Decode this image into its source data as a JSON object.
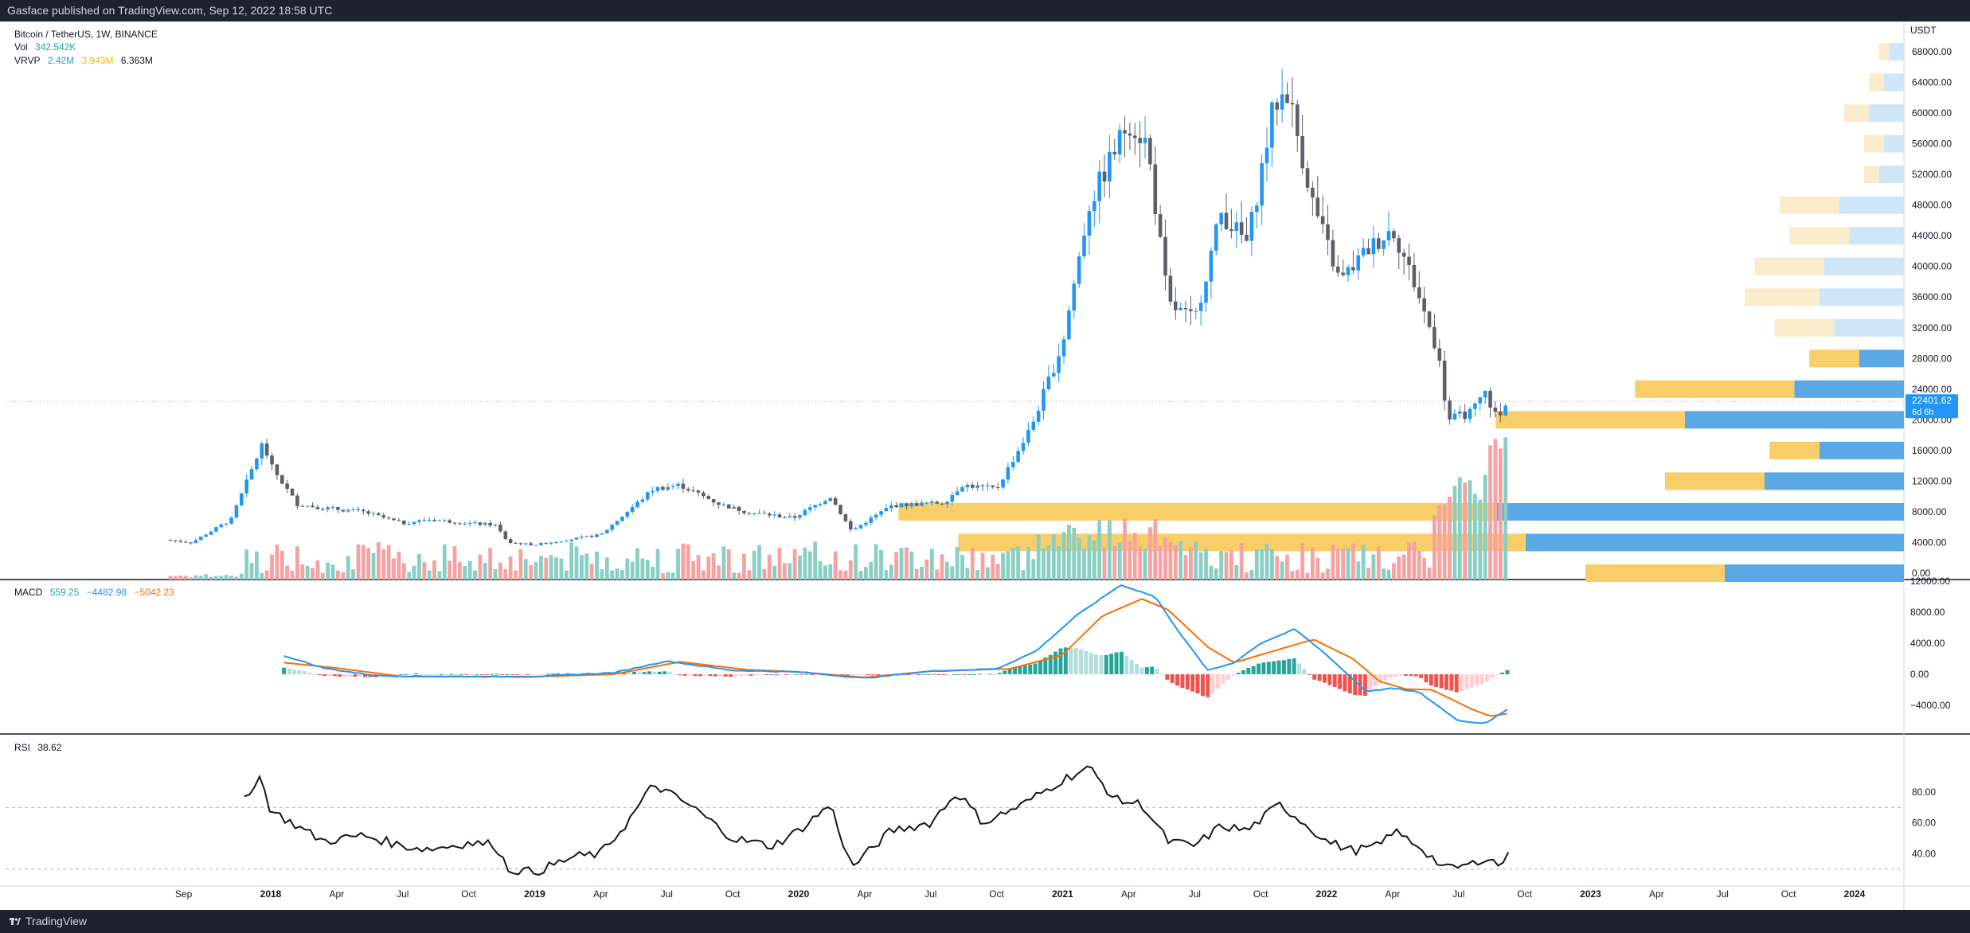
{
  "header": {
    "publisher": "Gasface published on TradingView.com, Sep 12, 2022 18:58 UTC"
  },
  "footer": {
    "brand": "TradingView",
    "logo_icon": "tradingview-logo-icon"
  },
  "symbol": {
    "title": "Bitcoin / TetherUS, 1W, BINANCE",
    "vol_label": "Vol",
    "vol_value": "342.542K",
    "vrvp_label": "VRVP",
    "vrvp_up": "2.42M",
    "vrvp_down": "3.943M",
    "vrvp_total": "6.363M",
    "currency": "USDT",
    "last_price": "22401.62",
    "countdown": "6d 6h"
  },
  "macd": {
    "label": "MACD",
    "hist": "559.25",
    "macd": "−4482.98",
    "signal": "−5042.23"
  },
  "rsi": {
    "label": "RSI",
    "value": "38.62"
  },
  "colors": {
    "up": "#2196f3",
    "down": "#5d606b",
    "vol_up": "#89cfc4",
    "vol_down": "#f5a3a2",
    "macd_line": "#2196f3",
    "signal_line": "#ff6d00",
    "hist_up": "#26a69a",
    "hist_up_weak": "#b2dfdb",
    "hist_down": "#ef5350",
    "hist_down_weak": "#ffcdd2",
    "rsi_line": "#131722",
    "vp_up": "#5aa9e6",
    "vp_down": "#f9ce69",
    "vp_up_weak": "#cfe6f9",
    "vp_down_weak": "#fbeccb"
  },
  "chart_data": [
    {
      "type": "candlestick",
      "title": "Bitcoin / TetherUS, 1W, BINANCE",
      "ylabel": "USDT",
      "ylim": [
        0,
        70000
      ],
      "y_ticks": [
        "68000.00",
        "64000.00",
        "60000.00",
        "56000.00",
        "52000.00",
        "48000.00",
        "44000.00",
        "40000.00",
        "36000.00",
        "32000.00",
        "28000.00",
        "24000.00",
        "20000.00",
        "16000.00",
        "12000.00",
        "8000.00",
        "4000.00",
        "0.00"
      ],
      "x_ticks": [
        "Sep",
        "2018",
        "Apr",
        "Jul",
        "Oct",
        "2019",
        "Apr",
        "Jul",
        "Oct",
        "2020",
        "Apr",
        "Jul",
        "Oct",
        "2021",
        "Apr",
        "Jul",
        "Oct",
        "2022",
        "Apr",
        "Jul",
        "Oct",
        "2023",
        "Apr",
        "Jul",
        "Oct",
        "2024"
      ],
      "x_tick_years": [
        2017.67,
        2018.0,
        2018.25,
        2018.5,
        2018.75,
        2019.0,
        2019.25,
        2019.5,
        2019.75,
        2020.0,
        2020.25,
        2020.5,
        2020.75,
        2021.0,
        2021.25,
        2021.5,
        2021.75,
        2022.0,
        2022.25,
        2022.5,
        2022.75,
        2023.0,
        2023.25,
        2023.5,
        2023.75,
        2024.0
      ],
      "x_bold": [
        false,
        true,
        false,
        false,
        false,
        true,
        false,
        false,
        false,
        true,
        false,
        false,
        false,
        true,
        false,
        false,
        false,
        true,
        false,
        false,
        false,
        true,
        false,
        false,
        false,
        true
      ],
      "approx_close_keyframes": [
        [
          2017.62,
          4300
        ],
        [
          2017.7,
          4000
        ],
        [
          2017.85,
          7000
        ],
        [
          2017.97,
          17000
        ],
        [
          2018.0,
          14000
        ],
        [
          2018.1,
          9000
        ],
        [
          2018.2,
          8500
        ],
        [
          2018.35,
          8000
        ],
        [
          2018.5,
          6500
        ],
        [
          2018.6,
          7000
        ],
        [
          2018.75,
          6500
        ],
        [
          2018.85,
          6300
        ],
        [
          2018.9,
          4000
        ],
        [
          2019.0,
          3700
        ],
        [
          2019.25,
          5000
        ],
        [
          2019.45,
          11000
        ],
        [
          2019.55,
          11500
        ],
        [
          2019.7,
          9000
        ],
        [
          2019.8,
          8000
        ],
        [
          2019.98,
          7200
        ],
        [
          2020.12,
          10000
        ],
        [
          2020.2,
          5500
        ],
        [
          2020.35,
          8800
        ],
        [
          2020.55,
          9200
        ],
        [
          2020.62,
          11500
        ],
        [
          2020.75,
          11000
        ],
        [
          2020.88,
          19000
        ],
        [
          2021.0,
          30000
        ],
        [
          2021.1,
          48000
        ],
        [
          2021.25,
          59000
        ],
        [
          2021.32,
          56000
        ],
        [
          2021.4,
          35000
        ],
        [
          2021.5,
          33000
        ],
        [
          2021.6,
          47000
        ],
        [
          2021.7,
          43000
        ],
        [
          2021.8,
          61000
        ],
        [
          2021.85,
          63000
        ],
        [
          2021.95,
          48000
        ],
        [
          2022.05,
          38000
        ],
        [
          2022.15,
          42000
        ],
        [
          2022.25,
          45000
        ],
        [
          2022.33,
          38000
        ],
        [
          2022.42,
          29000
        ],
        [
          2022.46,
          20000
        ],
        [
          2022.55,
          21000
        ],
        [
          2022.6,
          23500
        ],
        [
          2022.65,
          20000
        ],
        [
          2022.69,
          22400
        ]
      ]
    },
    {
      "type": "volume_profile",
      "rows": [
        {
          "price": 66000,
          "up": 0.015,
          "down": 0.01,
          "weak": true
        },
        {
          "price": 62000,
          "up": 0.02,
          "down": 0.015,
          "weak": true
        },
        {
          "price": 58000,
          "up": 0.035,
          "down": 0.025,
          "weak": true
        },
        {
          "price": 54000,
          "up": 0.02,
          "down": 0.02,
          "weak": true
        },
        {
          "price": 50000,
          "up": 0.025,
          "down": 0.015,
          "weak": true
        },
        {
          "price": 46000,
          "up": 0.065,
          "down": 0.06,
          "weak": true
        },
        {
          "price": 42000,
          "up": 0.055,
          "down": 0.06,
          "weak": true
        },
        {
          "price": 38000,
          "up": 0.08,
          "down": 0.07,
          "weak": true
        },
        {
          "price": 34000,
          "up": 0.085,
          "down": 0.075,
          "weak": true
        },
        {
          "price": 30000,
          "up": 0.07,
          "down": 0.06,
          "weak": true
        },
        {
          "price": 26000,
          "up": 0.045,
          "down": 0.05,
          "weak": false
        },
        {
          "price": 22000,
          "up": 0.11,
          "down": 0.16,
          "weak": false
        },
        {
          "price": 18000,
          "up": 0.22,
          "down": 0.19,
          "weak": false
        },
        {
          "price": 14000,
          "up": 0.085,
          "down": 0.05,
          "weak": false
        },
        {
          "price": 10000,
          "up": 0.14,
          "down": 0.1,
          "weak": false
        },
        {
          "price": 6000,
          "up": 0.41,
          "down": 0.6,
          "weak": false
        },
        {
          "price": 2000,
          "up": 0.38,
          "down": 0.57,
          "weak": false
        },
        {
          "price": -2000,
          "up": 0.18,
          "down": 0.14,
          "weak": false
        }
      ]
    },
    {
      "type": "line",
      "title": "MACD",
      "ylim": [
        -7500,
        12500
      ],
      "y_ticks": [
        "12000.00",
        "8000.00",
        "4000.00",
        "0.00",
        "−4000.00"
      ],
      "series": [
        {
          "name": "MACD",
          "keyframes": [
            [
              2018.05,
              2400
            ],
            [
              2018.2,
              800
            ],
            [
              2018.4,
              -200
            ],
            [
              2018.8,
              -300
            ],
            [
              2019.0,
              -300
            ],
            [
              2019.3,
              200
            ],
            [
              2019.5,
              1700
            ],
            [
              2019.75,
              500
            ],
            [
              2020.0,
              300
            ],
            [
              2020.25,
              -500
            ],
            [
              2020.5,
              400
            ],
            [
              2020.75,
              700
            ],
            [
              2020.9,
              3000
            ],
            [
              2021.05,
              7500
            ],
            [
              2021.22,
              11500
            ],
            [
              2021.35,
              10000
            ],
            [
              2021.45,
              5000
            ],
            [
              2021.55,
              500
            ],
            [
              2021.65,
              1500
            ],
            [
              2021.75,
              4000
            ],
            [
              2021.88,
              5800
            ],
            [
              2022.0,
              2500
            ],
            [
              2022.15,
              -2200
            ],
            [
              2022.25,
              -1800
            ],
            [
              2022.35,
              -2300
            ],
            [
              2022.5,
              -6000
            ],
            [
              2022.6,
              -6300
            ],
            [
              2022.69,
              -4480
            ]
          ]
        },
        {
          "name": "Signal",
          "keyframes": [
            [
              2018.05,
              1500
            ],
            [
              2018.25,
              800
            ],
            [
              2018.5,
              -300
            ],
            [
              2019.0,
              -300
            ],
            [
              2019.3,
              0
            ],
            [
              2019.55,
              1600
            ],
            [
              2019.8,
              600
            ],
            [
              2020.0,
              300
            ],
            [
              2020.25,
              -400
            ],
            [
              2020.5,
              400
            ],
            [
              2020.8,
              700
            ],
            [
              2021.0,
              2500
            ],
            [
              2021.15,
              7500
            ],
            [
              2021.3,
              9700
            ],
            [
              2021.4,
              8300
            ],
            [
              2021.55,
              3500
            ],
            [
              2021.65,
              1500
            ],
            [
              2021.8,
              3000
            ],
            [
              2021.95,
              4500
            ],
            [
              2022.1,
              2000
            ],
            [
              2022.2,
              -900
            ],
            [
              2022.3,
              -1900
            ],
            [
              2022.4,
              -2000
            ],
            [
              2022.55,
              -4500
            ],
            [
              2022.62,
              -5400
            ],
            [
              2022.69,
              -5040
            ]
          ]
        }
      ]
    },
    {
      "type": "line",
      "title": "RSI",
      "ylim": [
        22,
        100
      ],
      "y_ticks": [
        "80.00",
        "60.00",
        "40.00"
      ],
      "bands": [
        70,
        30
      ],
      "series": [
        {
          "name": "RSI",
          "keyframes": [
            [
              2017.9,
              77
            ],
            [
              2017.96,
              90
            ],
            [
              2018.0,
              68
            ],
            [
              2018.1,
              58
            ],
            [
              2018.2,
              48
            ],
            [
              2018.35,
              52
            ],
            [
              2018.5,
              45
            ],
            [
              2018.6,
              43
            ],
            [
              2018.75,
              47
            ],
            [
              2018.85,
              46
            ],
            [
              2018.9,
              30
            ],
            [
              2019.0,
              28
            ],
            [
              2019.15,
              38
            ],
            [
              2019.25,
              40
            ],
            [
              2019.35,
              60
            ],
            [
              2019.45,
              85
            ],
            [
              2019.5,
              80
            ],
            [
              2019.6,
              70
            ],
            [
              2019.75,
              50
            ],
            [
              2019.9,
              45
            ],
            [
              2020.0,
              55
            ],
            [
              2020.12,
              72
            ],
            [
              2020.2,
              31
            ],
            [
              2020.35,
              55
            ],
            [
              2020.5,
              60
            ],
            [
              2020.6,
              80
            ],
            [
              2020.7,
              60
            ],
            [
              2020.85,
              72
            ],
            [
              2021.0,
              88
            ],
            [
              2021.1,
              96
            ],
            [
              2021.2,
              75
            ],
            [
              2021.3,
              72
            ],
            [
              2021.4,
              48
            ],
            [
              2021.5,
              45
            ],
            [
              2021.6,
              58
            ],
            [
              2021.7,
              55
            ],
            [
              2021.82,
              72
            ],
            [
              2021.9,
              62
            ],
            [
              2022.0,
              48
            ],
            [
              2022.1,
              42
            ],
            [
              2022.2,
              45
            ],
            [
              2022.25,
              55
            ],
            [
              2022.35,
              45
            ],
            [
              2022.45,
              30
            ],
            [
              2022.55,
              33
            ],
            [
              2022.6,
              38
            ],
            [
              2022.65,
              33
            ],
            [
              2022.69,
              38.62
            ]
          ]
        }
      ]
    }
  ]
}
